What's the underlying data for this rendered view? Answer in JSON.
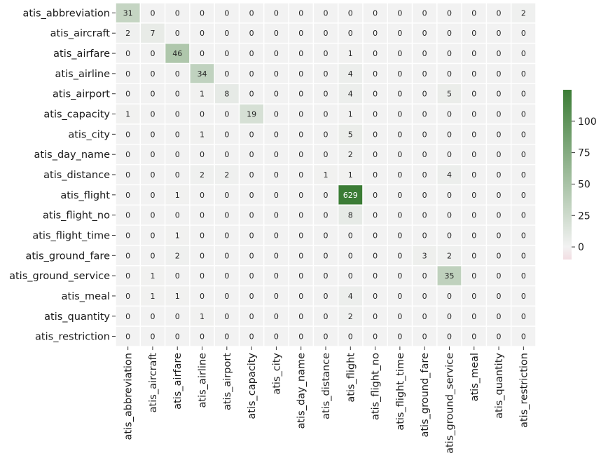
{
  "chart_data": {
    "type": "heatmap",
    "rows": [
      "atis_abbreviation",
      "atis_aircraft",
      "atis_airfare",
      "atis_airline",
      "atis_airport",
      "atis_capacity",
      "atis_city",
      "atis_day_name",
      "atis_distance",
      "atis_flight",
      "atis_flight_no",
      "atis_flight_time",
      "atis_ground_fare",
      "atis_ground_service",
      "atis_meal",
      "atis_quantity",
      "atis_restriction"
    ],
    "columns": [
      "atis_abbreviation",
      "atis_aircraft",
      "atis_airfare",
      "atis_airline",
      "atis_airport",
      "atis_capacity",
      "atis_city",
      "atis_day_name",
      "atis_distance",
      "atis_flight",
      "atis_flight_no",
      "atis_flight_time",
      "atis_ground_fare",
      "atis_ground_service",
      "atis_meal",
      "atis_quantity",
      "atis_restriction"
    ],
    "values": [
      [
        31,
        0,
        0,
        0,
        0,
        0,
        0,
        0,
        0,
        0,
        0,
        0,
        0,
        0,
        0,
        0,
        2
      ],
      [
        2,
        7,
        0,
        0,
        0,
        0,
        0,
        0,
        0,
        0,
        0,
        0,
        0,
        0,
        0,
        0,
        0
      ],
      [
        0,
        0,
        46,
        0,
        0,
        0,
        0,
        0,
        0,
        1,
        0,
        0,
        0,
        0,
        0,
        0,
        0
      ],
      [
        0,
        0,
        0,
        34,
        0,
        0,
        0,
        0,
        0,
        4,
        0,
        0,
        0,
        0,
        0,
        0,
        0
      ],
      [
        0,
        0,
        0,
        1,
        8,
        0,
        0,
        0,
        0,
        4,
        0,
        0,
        0,
        5,
        0,
        0,
        0
      ],
      [
        1,
        0,
        0,
        0,
        0,
        19,
        0,
        0,
        0,
        1,
        0,
        0,
        0,
        0,
        0,
        0,
        0
      ],
      [
        0,
        0,
        0,
        1,
        0,
        0,
        0,
        0,
        0,
        5,
        0,
        0,
        0,
        0,
        0,
        0,
        0
      ],
      [
        0,
        0,
        0,
        0,
        0,
        0,
        0,
        0,
        0,
        2,
        0,
        0,
        0,
        0,
        0,
        0,
        0
      ],
      [
        0,
        0,
        0,
        2,
        2,
        0,
        0,
        0,
        1,
        1,
        0,
        0,
        0,
        4,
        0,
        0,
        0
      ],
      [
        0,
        0,
        1,
        0,
        0,
        0,
        0,
        0,
        0,
        629,
        0,
        0,
        0,
        0,
        0,
        0,
        0
      ],
      [
        0,
        0,
        0,
        0,
        0,
        0,
        0,
        0,
        0,
        8,
        0,
        0,
        0,
        0,
        0,
        0,
        0
      ],
      [
        0,
        0,
        1,
        0,
        0,
        0,
        0,
        0,
        0,
        0,
        0,
        0,
        0,
        0,
        0,
        0,
        0
      ],
      [
        0,
        0,
        2,
        0,
        0,
        0,
        0,
        0,
        0,
        0,
        0,
        0,
        3,
        2,
        0,
        0,
        0
      ],
      [
        0,
        1,
        0,
        0,
        0,
        0,
        0,
        0,
        0,
        0,
        0,
        0,
        0,
        35,
        0,
        0,
        0
      ],
      [
        0,
        1,
        1,
        0,
        0,
        0,
        0,
        0,
        0,
        4,
        0,
        0,
        0,
        0,
        0,
        0,
        0
      ],
      [
        0,
        0,
        0,
        1,
        0,
        0,
        0,
        0,
        0,
        2,
        0,
        0,
        0,
        0,
        0,
        0,
        0
      ],
      [
        0,
        0,
        0,
        0,
        0,
        0,
        0,
        0,
        0,
        0,
        0,
        0,
        0,
        0,
        0,
        0,
        0
      ]
    ],
    "colorbar": {
      "ticks": [
        0,
        25,
        50,
        75,
        100
      ],
      "range": [
        -10,
        125
      ],
      "colors": {
        "low": "#f2dde2",
        "mid": "#f2f2f2",
        "high": "#3b7c35"
      }
    },
    "xlabel": "",
    "ylabel": "",
    "title": ""
  }
}
